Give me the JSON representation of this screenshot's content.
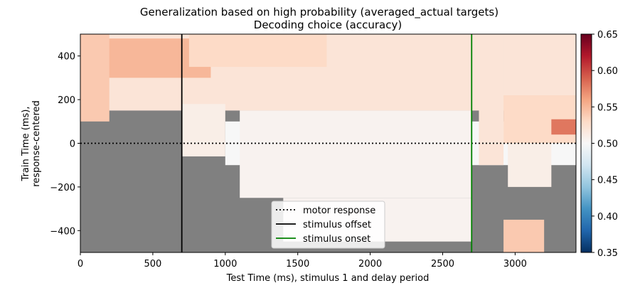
{
  "chart_data": {
    "type": "heatmap",
    "title": "Generalization based on high probability (averaged_actual targets)",
    "subtitle": "Decoding choice (accuracy)",
    "xlabel": "Test Time (ms), stimulus 1 and delay period",
    "ylabel": [
      "Train Time (ms),",
      "response-centered"
    ],
    "xlim": [
      0,
      3420
    ],
    "ylim": [
      -500,
      500
    ],
    "xticks": [
      0,
      500,
      1000,
      1500,
      2000,
      2500,
      3000
    ],
    "yticks": [
      -400,
      -200,
      0,
      200,
      400
    ],
    "masked_color": "#808080",
    "colorbar": {
      "vmin": 0.35,
      "vmax": 0.65,
      "ticks": [
        "0.35",
        "0.40",
        "0.45",
        "0.50",
        "0.55",
        "0.60",
        "0.65"
      ],
      "colormap": "RdBu_r"
    },
    "annotations": [
      {
        "label": "motor response",
        "orientation": "horizontal",
        "value": 0,
        "color": "#000000",
        "style": "dotted"
      },
      {
        "label": "stimulus offset",
        "orientation": "vertical",
        "value": 700,
        "color": "#000000",
        "style": "solid"
      },
      {
        "label": "stimulus onset",
        "orientation": "vertical",
        "value": 2700,
        "color": "#008000",
        "style": "solid"
      }
    ],
    "legend_position": "lower center",
    "regions": [
      {
        "x": [
          0,
          3420
        ],
        "y": [
          -500,
          500
        ],
        "value": "masked"
      },
      {
        "x": [
          0,
          3420
        ],
        "y": [
          150,
          500
        ],
        "value": 0.52
      },
      {
        "x": [
          150,
          900
        ],
        "y": [
          300,
          480
        ],
        "value": 0.55
      },
      {
        "x": [
          750,
          1700
        ],
        "y": [
          350,
          500
        ],
        "value": 0.53
      },
      {
        "x": [
          0,
          200
        ],
        "y": [
          100,
          500
        ],
        "value": 0.54
      },
      {
        "x": [
          700,
          1000
        ],
        "y": [
          -60,
          180
        ],
        "value": 0.51
      },
      {
        "x": [
          1000,
          3420
        ],
        "y": [
          -100,
          100
        ],
        "value": 0.5
      },
      {
        "x": [
          1100,
          2700
        ],
        "y": [
          -250,
          150
        ],
        "value": 0.505
      },
      {
        "x": [
          1400,
          2700
        ],
        "y": [
          -450,
          -250
        ],
        "value": 0.505
      },
      {
        "x": [
          2750,
          2920
        ],
        "y": [
          -100,
          500
        ],
        "value": 0.52
      },
      {
        "x": [
          2920,
          3420
        ],
        "y": [
          0,
          220
        ],
        "value": 0.53
      },
      {
        "x": [
          3250,
          3420
        ],
        "y": [
          40,
          110
        ],
        "value": 0.58
      },
      {
        "x": [
          2950,
          3250
        ],
        "y": [
          -200,
          0
        ],
        "value": 0.51
      },
      {
        "x": [
          2920,
          3200
        ],
        "y": [
          -500,
          -350
        ],
        "value": 0.54
      }
    ]
  }
}
